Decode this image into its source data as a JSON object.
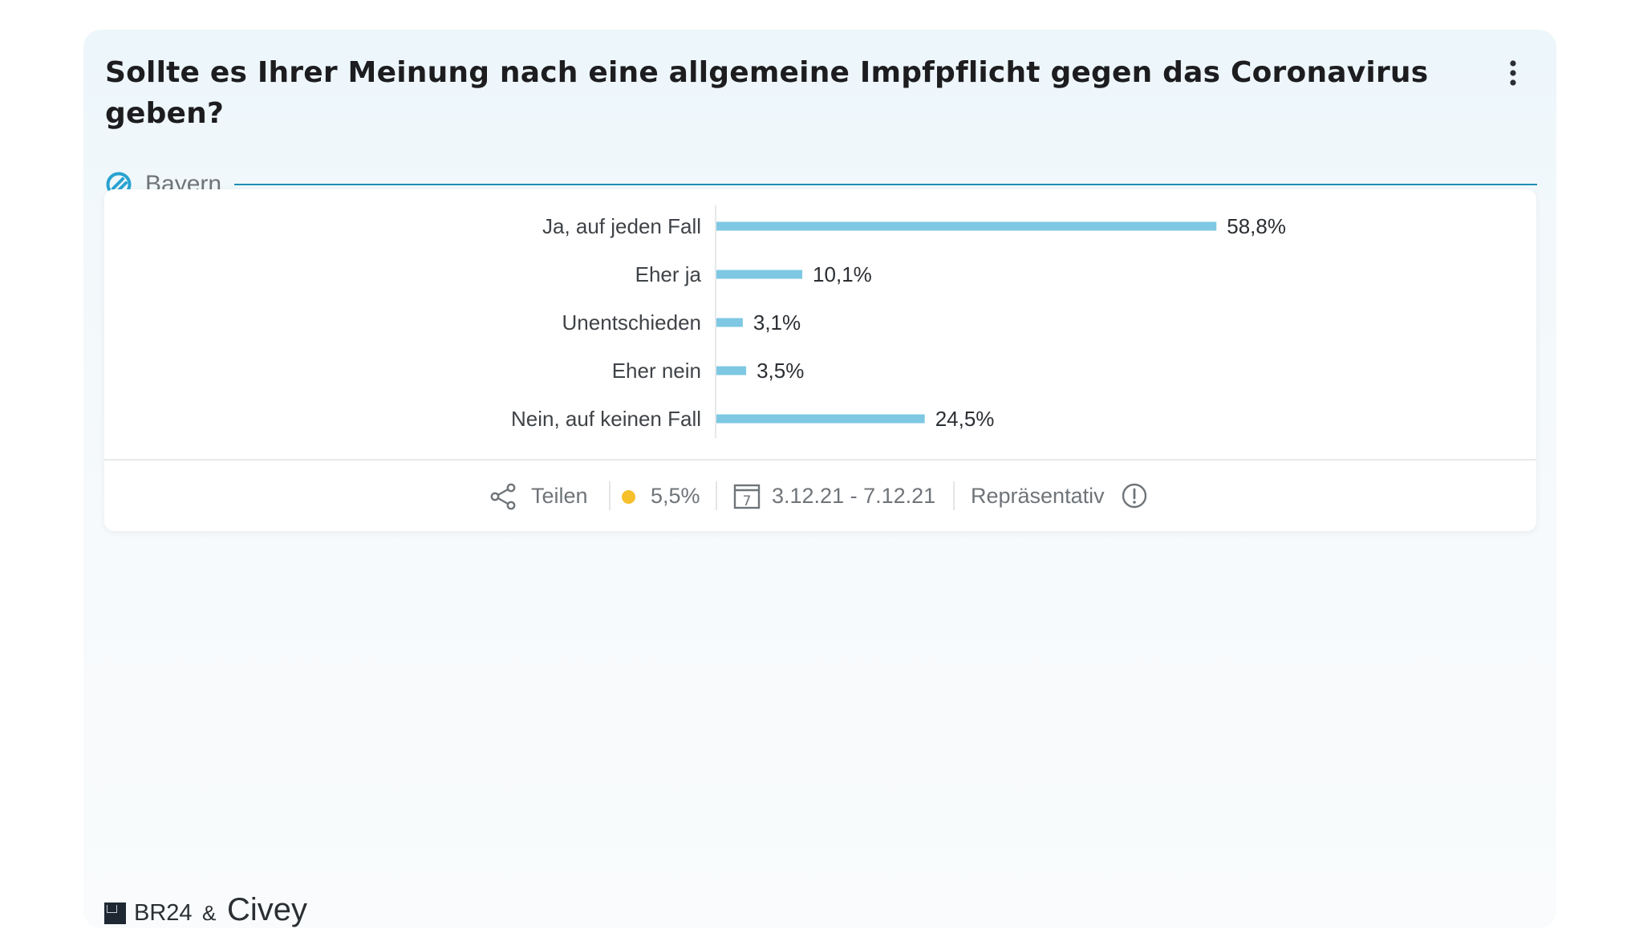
{
  "question": "Sollte es Ihrer Meinung nach eine allgemeine Impfpflicht gegen das Coronavirus geben?",
  "region": "Bayern",
  "chart_data": {
    "type": "bar",
    "orientation": "horizontal",
    "categories": [
      "Ja, auf jeden Fall",
      "Eher ja",
      "Unentschieden",
      "Eher nein",
      "Nein, auf keinen Fall"
    ],
    "values": [
      58.8,
      10.1,
      3.1,
      3.5,
      24.5
    ],
    "value_labels": [
      "58,8%",
      "10,1%",
      "3,1%",
      "3,5%",
      "24,5%"
    ],
    "bar_color": "#7ec8e3",
    "unit": "%"
  },
  "footer": {
    "share_label": "Teilen",
    "error_margin": "5,5%",
    "period": "3.12.21 - 7.12.21",
    "calendar_day": "7",
    "representative_label": "Repräsentativ"
  },
  "branding": {
    "br24": "BR24",
    "ampersand": "&",
    "civey": "Civey"
  },
  "colors": {
    "accent": "#1e8fb3",
    "error_dot": "#f6c02b",
    "background": "#ecf6fb"
  },
  "icons": [
    "more-vertical-icon",
    "region-icon",
    "share-icon",
    "calendar-icon",
    "info-circle-icon",
    "br-logo-icon"
  ]
}
